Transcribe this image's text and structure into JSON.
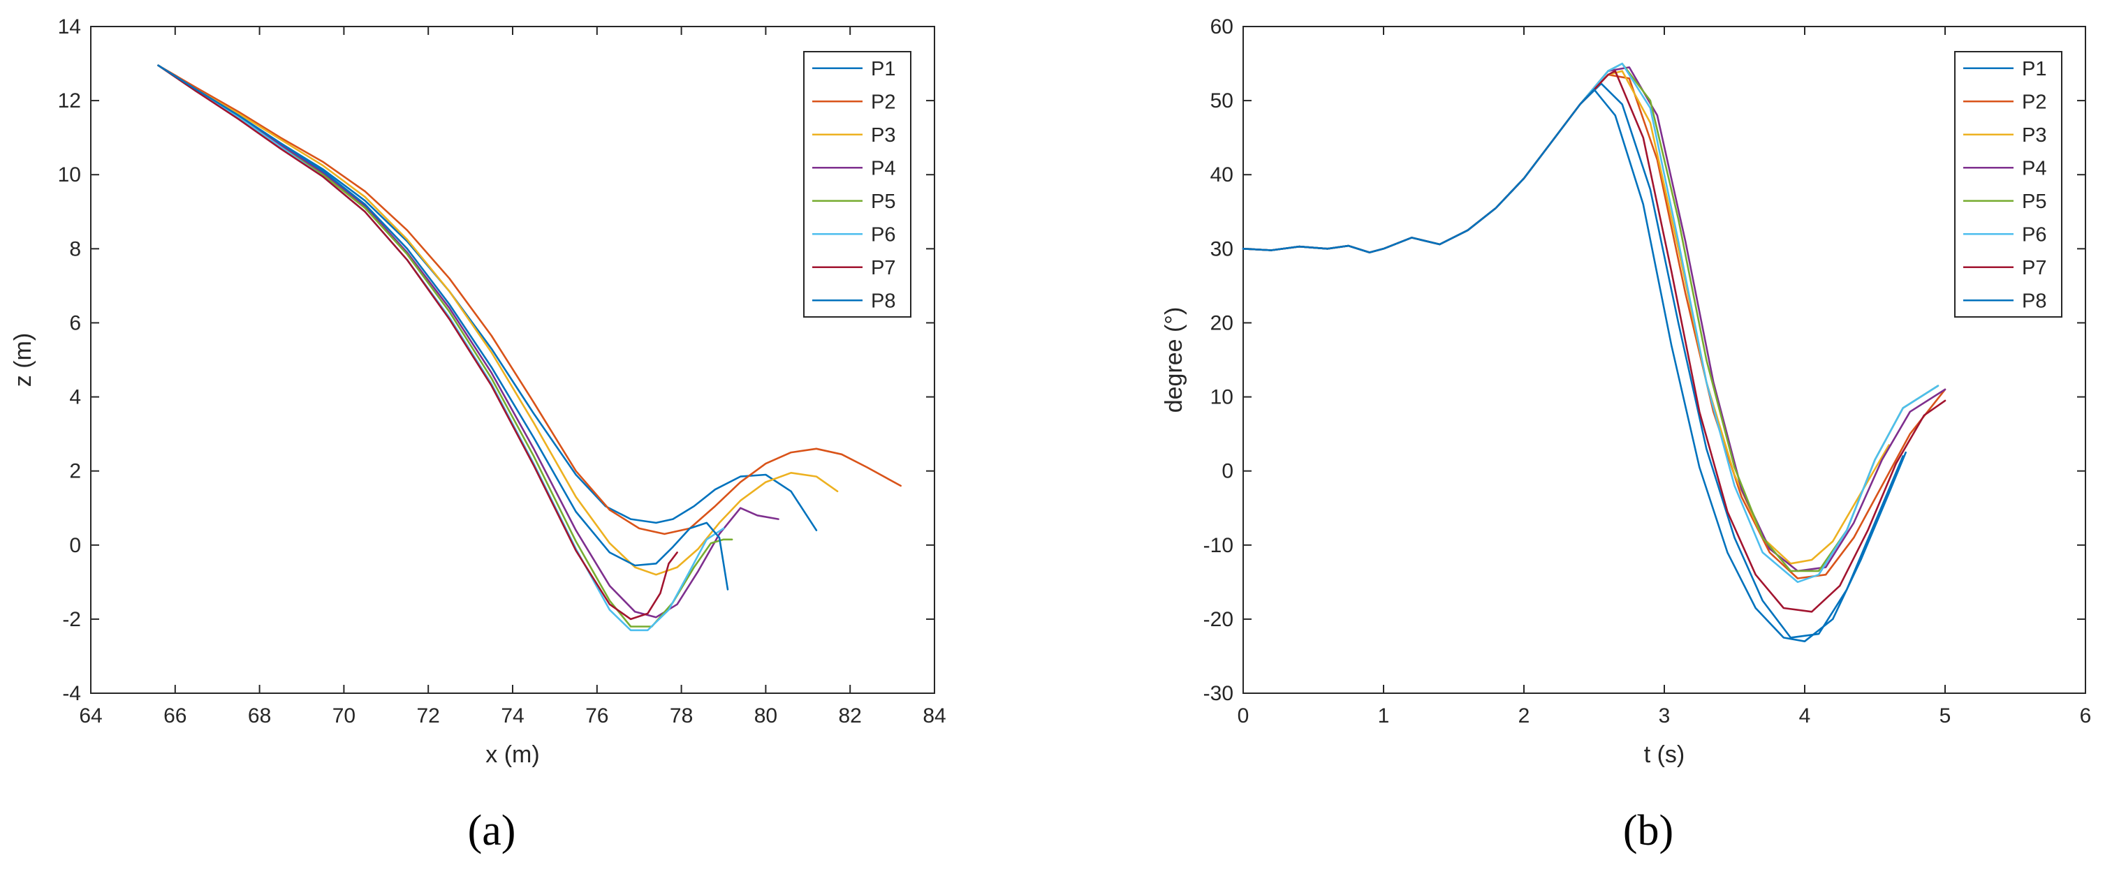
{
  "figure": {
    "panel_labels": [
      "(a)",
      "(b)"
    ]
  },
  "chart_data": [
    {
      "type": "line",
      "panel": "(a)",
      "title": "",
      "xlabel": "x (m)",
      "ylabel": "z (m)",
      "xlim": [
        64,
        84
      ],
      "ylim": [
        -4,
        14
      ],
      "xticks": [
        64,
        66,
        68,
        70,
        72,
        74,
        76,
        78,
        80,
        82,
        84
      ],
      "yticks": [
        -4,
        -2,
        0,
        2,
        4,
        6,
        8,
        10,
        12,
        14
      ],
      "grid": false,
      "legend_position": "top-right",
      "series": [
        {
          "name": "P1",
          "color": "#0072BD",
          "x": [
            65.6,
            66.5,
            67.5,
            68.5,
            69.5,
            70.5,
            71.5,
            72.5,
            73.5,
            74.5,
            75.5,
            76.2,
            76.8,
            77.4,
            77.8,
            78.3,
            78.8,
            79.4,
            80.0,
            80.6,
            81.2
          ],
          "y": [
            12.95,
            12.3,
            11.6,
            10.85,
            10.15,
            9.3,
            8.2,
            6.85,
            5.3,
            3.55,
            1.9,
            1.05,
            0.7,
            0.6,
            0.7,
            1.05,
            1.5,
            1.85,
            1.9,
            1.45,
            0.4
          ]
        },
        {
          "name": "P2",
          "color": "#D95319",
          "x": [
            65.6,
            66.5,
            67.5,
            68.5,
            69.5,
            70.5,
            71.5,
            72.5,
            73.5,
            74.5,
            75.5,
            76.3,
            77.0,
            77.6,
            78.2,
            78.8,
            79.4,
            80.0,
            80.6,
            81.2,
            81.8,
            82.4,
            83.2
          ],
          "y": [
            12.95,
            12.35,
            11.7,
            11.0,
            10.35,
            9.55,
            8.5,
            7.2,
            5.65,
            3.85,
            2.0,
            0.95,
            0.45,
            0.3,
            0.45,
            1.05,
            1.7,
            2.2,
            2.5,
            2.6,
            2.45,
            2.1,
            1.6
          ]
        },
        {
          "name": "P3",
          "color": "#EDB120",
          "x": [
            65.6,
            66.5,
            67.5,
            68.5,
            69.5,
            70.5,
            71.5,
            72.5,
            73.5,
            74.5,
            75.5,
            76.3,
            76.9,
            77.4,
            77.9,
            78.4,
            78.9,
            79.4,
            80.0,
            80.6,
            81.2,
            81.7
          ],
          "y": [
            12.95,
            12.3,
            11.65,
            10.95,
            10.25,
            9.4,
            8.25,
            6.85,
            5.2,
            3.3,
            1.3,
            0.05,
            -0.6,
            -0.8,
            -0.6,
            -0.1,
            0.6,
            1.2,
            1.7,
            1.95,
            1.85,
            1.45
          ]
        },
        {
          "name": "P4",
          "color": "#7E2F8E",
          "x": [
            65.6,
            66.5,
            67.5,
            68.5,
            69.5,
            70.5,
            71.5,
            72.5,
            73.5,
            74.5,
            75.5,
            76.3,
            76.9,
            77.4,
            77.9,
            78.4,
            78.9,
            79.4,
            79.8,
            80.3
          ],
          "y": [
            12.95,
            12.3,
            11.6,
            10.8,
            10.05,
            9.15,
            7.9,
            6.4,
            4.65,
            2.6,
            0.4,
            -1.1,
            -1.8,
            -1.95,
            -1.6,
            -0.7,
            0.3,
            1.0,
            0.8,
            0.7
          ]
        },
        {
          "name": "P5",
          "color": "#77AC30",
          "x": [
            65.6,
            66.5,
            67.5,
            68.5,
            69.5,
            70.5,
            71.5,
            72.5,
            73.5,
            74.5,
            75.5,
            76.3,
            76.8,
            77.3,
            77.8,
            78.3,
            78.7,
            79.0,
            79.2
          ],
          "y": [
            12.95,
            12.25,
            11.55,
            10.75,
            10.0,
            9.1,
            7.85,
            6.3,
            4.5,
            2.4,
            0.1,
            -1.5,
            -2.2,
            -2.2,
            -1.55,
            -0.6,
            0.05,
            0.15,
            0.15
          ]
        },
        {
          "name": "P6",
          "color": "#4DBEEE",
          "x": [
            65.6,
            66.5,
            67.5,
            68.5,
            69.5,
            70.5,
            71.5,
            72.5,
            73.5,
            74.5,
            75.5,
            76.3,
            76.8,
            77.2,
            77.7,
            78.2,
            78.6,
            79.0
          ],
          "y": [
            12.95,
            12.25,
            11.55,
            10.75,
            9.95,
            9.0,
            7.7,
            6.15,
            4.35,
            2.2,
            -0.1,
            -1.75,
            -2.3,
            -2.3,
            -1.75,
            -0.7,
            0.15,
            0.45
          ]
        },
        {
          "name": "P7",
          "color": "#A2142F",
          "x": [
            65.6,
            66.5,
            67.5,
            68.5,
            69.5,
            70.5,
            71.5,
            72.5,
            73.5,
            74.5,
            75.5,
            76.3,
            76.8,
            77.2,
            77.5,
            77.7,
            77.9
          ],
          "y": [
            12.95,
            12.25,
            11.5,
            10.7,
            9.95,
            9.0,
            7.7,
            6.1,
            4.3,
            2.15,
            -0.15,
            -1.6,
            -2.0,
            -1.85,
            -1.3,
            -0.5,
            -0.2
          ]
        },
        {
          "name": "P8",
          "color": "#0072BD",
          "x": [
            65.6,
            66.5,
            67.5,
            68.5,
            69.5,
            70.5,
            71.5,
            72.5,
            73.5,
            74.5,
            75.5,
            76.3,
            76.9,
            77.4,
            77.8,
            78.2,
            78.6,
            78.9,
            79.1
          ],
          "y": [
            12.95,
            12.3,
            11.6,
            10.85,
            10.1,
            9.2,
            8.0,
            6.5,
            4.8,
            2.9,
            0.9,
            -0.2,
            -0.55,
            -0.5,
            -0.05,
            0.45,
            0.6,
            0.2,
            -1.2
          ]
        }
      ]
    },
    {
      "type": "line",
      "panel": "(b)",
      "title": "",
      "xlabel": "t (s)",
      "ylabel": "degree (°)",
      "xlim": [
        0,
        6
      ],
      "ylim": [
        -30,
        60
      ],
      "xticks": [
        0,
        1,
        2,
        3,
        4,
        5,
        6
      ],
      "yticks": [
        -30,
        -20,
        -10,
        0,
        10,
        20,
        30,
        40,
        50,
        60
      ],
      "grid": false,
      "legend_position": "top-right",
      "series": [
        {
          "name": "P1",
          "color": "#0072BD",
          "x": [
            0,
            0.2,
            0.4,
            0.6,
            0.75,
            0.9,
            1.0,
            1.2,
            1.4,
            1.6,
            1.8,
            2.0,
            2.2,
            2.4,
            2.55,
            2.7,
            2.9,
            3.1,
            3.3,
            3.5,
            3.7,
            3.9,
            4.1,
            4.3,
            4.5,
            4.7
          ],
          "y": [
            30,
            29.8,
            30.3,
            30.0,
            30.4,
            29.5,
            30.0,
            31.5,
            30.6,
            32.5,
            35.5,
            39.5,
            44.5,
            49.5,
            52.3,
            49.5,
            38.0,
            20.0,
            3.0,
            -9.0,
            -17.5,
            -22.5,
            -22.0,
            -16.0,
            -7.0,
            2.0
          ]
        },
        {
          "name": "P2",
          "color": "#D95319",
          "x": [
            0,
            0.2,
            0.4,
            0.6,
            0.75,
            0.9,
            1.0,
            1.2,
            1.4,
            1.6,
            1.8,
            2.0,
            2.2,
            2.4,
            2.6,
            2.75,
            2.95,
            3.15,
            3.35,
            3.55,
            3.75,
            3.95,
            4.15,
            4.35,
            4.55,
            4.75,
            5.0
          ],
          "y": [
            30,
            29.8,
            30.3,
            30.0,
            30.4,
            29.5,
            30.0,
            31.5,
            30.6,
            32.5,
            35.5,
            39.5,
            44.5,
            49.5,
            53.5,
            53.0,
            42.0,
            24.0,
            8.0,
            -3.5,
            -11.0,
            -14.5,
            -14.0,
            -9.0,
            -2.0,
            5.0,
            11.0
          ]
        },
        {
          "name": "P3",
          "color": "#EDB120",
          "x": [
            0,
            0.2,
            0.4,
            0.6,
            0.75,
            0.9,
            1.0,
            1.2,
            1.4,
            1.6,
            1.8,
            2.0,
            2.2,
            2.4,
            2.6,
            2.7,
            2.9,
            3.1,
            3.3,
            3.5,
            3.7,
            3.9,
            4.05,
            4.2,
            4.4,
            4.6
          ],
          "y": [
            30,
            29.8,
            30.3,
            30.0,
            30.4,
            29.5,
            30.0,
            31.5,
            30.6,
            32.5,
            35.5,
            39.5,
            44.5,
            49.5,
            53.5,
            54.0,
            47.0,
            30.0,
            12.0,
            -0.5,
            -9.0,
            -12.5,
            -12.0,
            -9.5,
            -3.0,
            3.5
          ]
        },
        {
          "name": "P4",
          "color": "#7E2F8E",
          "x": [
            0,
            0.2,
            0.4,
            0.6,
            0.75,
            0.9,
            1.0,
            1.2,
            1.4,
            1.6,
            1.8,
            2.0,
            2.2,
            2.4,
            2.6,
            2.75,
            2.95,
            3.15,
            3.35,
            3.55,
            3.75,
            3.95,
            4.15,
            4.35,
            4.55,
            4.75,
            5.0
          ],
          "y": [
            30,
            29.8,
            30.3,
            30.0,
            30.4,
            29.5,
            30.0,
            31.5,
            30.6,
            32.5,
            35.5,
            39.5,
            44.5,
            49.5,
            54.0,
            54.5,
            48.0,
            31.0,
            12.0,
            -2.5,
            -10.5,
            -13.5,
            -13.0,
            -7.0,
            1.5,
            8.0,
            11.0
          ]
        },
        {
          "name": "P5",
          "color": "#77AC30",
          "x": [
            0,
            0.2,
            0.4,
            0.6,
            0.75,
            0.9,
            1.0,
            1.2,
            1.4,
            1.6,
            1.8,
            2.0,
            2.2,
            2.4,
            2.6,
            2.7,
            2.9,
            3.1,
            3.3,
            3.5,
            3.7,
            3.9,
            4.1,
            4.3,
            4.5,
            4.7,
            4.95
          ],
          "y": [
            30,
            29.8,
            30.3,
            30.0,
            30.4,
            29.5,
            30.0,
            31.5,
            30.6,
            32.5,
            35.5,
            39.5,
            44.5,
            49.5,
            54.0,
            55.0,
            50.0,
            34.0,
            15.0,
            0.5,
            -9.0,
            -13.5,
            -13.5,
            -8.0,
            1.5,
            8.5,
            11.5
          ]
        },
        {
          "name": "P6",
          "color": "#4DBEEE",
          "x": [
            0,
            0.2,
            0.4,
            0.6,
            0.75,
            0.9,
            1.0,
            1.2,
            1.4,
            1.6,
            1.8,
            2.0,
            2.2,
            2.4,
            2.6,
            2.7,
            2.9,
            3.1,
            3.3,
            3.5,
            3.7,
            3.95,
            4.1,
            4.3,
            4.5,
            4.7,
            4.95
          ],
          "y": [
            30,
            29.8,
            30.3,
            30.0,
            30.4,
            29.5,
            30.0,
            31.5,
            30.6,
            32.5,
            35.5,
            39.5,
            44.5,
            49.5,
            54.0,
            55.0,
            49.0,
            31.0,
            12.0,
            -2.0,
            -11.0,
            -15.0,
            -14.0,
            -8.0,
            1.5,
            8.5,
            11.5
          ]
        },
        {
          "name": "P7",
          "color": "#A2142F",
          "x": [
            0,
            0.2,
            0.4,
            0.6,
            0.75,
            0.9,
            1.0,
            1.2,
            1.4,
            1.6,
            1.8,
            2.0,
            2.2,
            2.4,
            2.6,
            2.65,
            2.85,
            3.05,
            3.25,
            3.45,
            3.65,
            3.85,
            4.05,
            4.25,
            4.45,
            4.65,
            4.85,
            5.0
          ],
          "y": [
            30,
            29.8,
            30.3,
            30.0,
            30.4,
            29.5,
            30.0,
            31.5,
            30.6,
            32.5,
            35.5,
            39.5,
            44.5,
            49.5,
            53.5,
            54.0,
            45.0,
            27.0,
            8.0,
            -5.5,
            -14.0,
            -18.5,
            -19.0,
            -15.5,
            -8.0,
            1.0,
            7.5,
            9.5
          ]
        },
        {
          "name": "P8",
          "color": "#0072BD",
          "x": [
            0,
            0.2,
            0.4,
            0.6,
            0.75,
            0.9,
            1.0,
            1.2,
            1.4,
            1.6,
            1.8,
            2.0,
            2.2,
            2.4,
            2.5,
            2.65,
            2.85,
            3.05,
            3.25,
            3.45,
            3.65,
            3.85,
            4.0,
            4.2,
            4.4,
            4.6,
            4.72
          ],
          "y": [
            30,
            29.8,
            30.3,
            30.0,
            30.4,
            29.5,
            30.0,
            31.5,
            30.6,
            32.5,
            35.5,
            39.5,
            44.5,
            49.5,
            51.5,
            48.0,
            36.0,
            17.0,
            0.5,
            -11.0,
            -18.5,
            -22.5,
            -23.0,
            -20.0,
            -12.0,
            -3.0,
            2.5
          ]
        }
      ]
    }
  ]
}
